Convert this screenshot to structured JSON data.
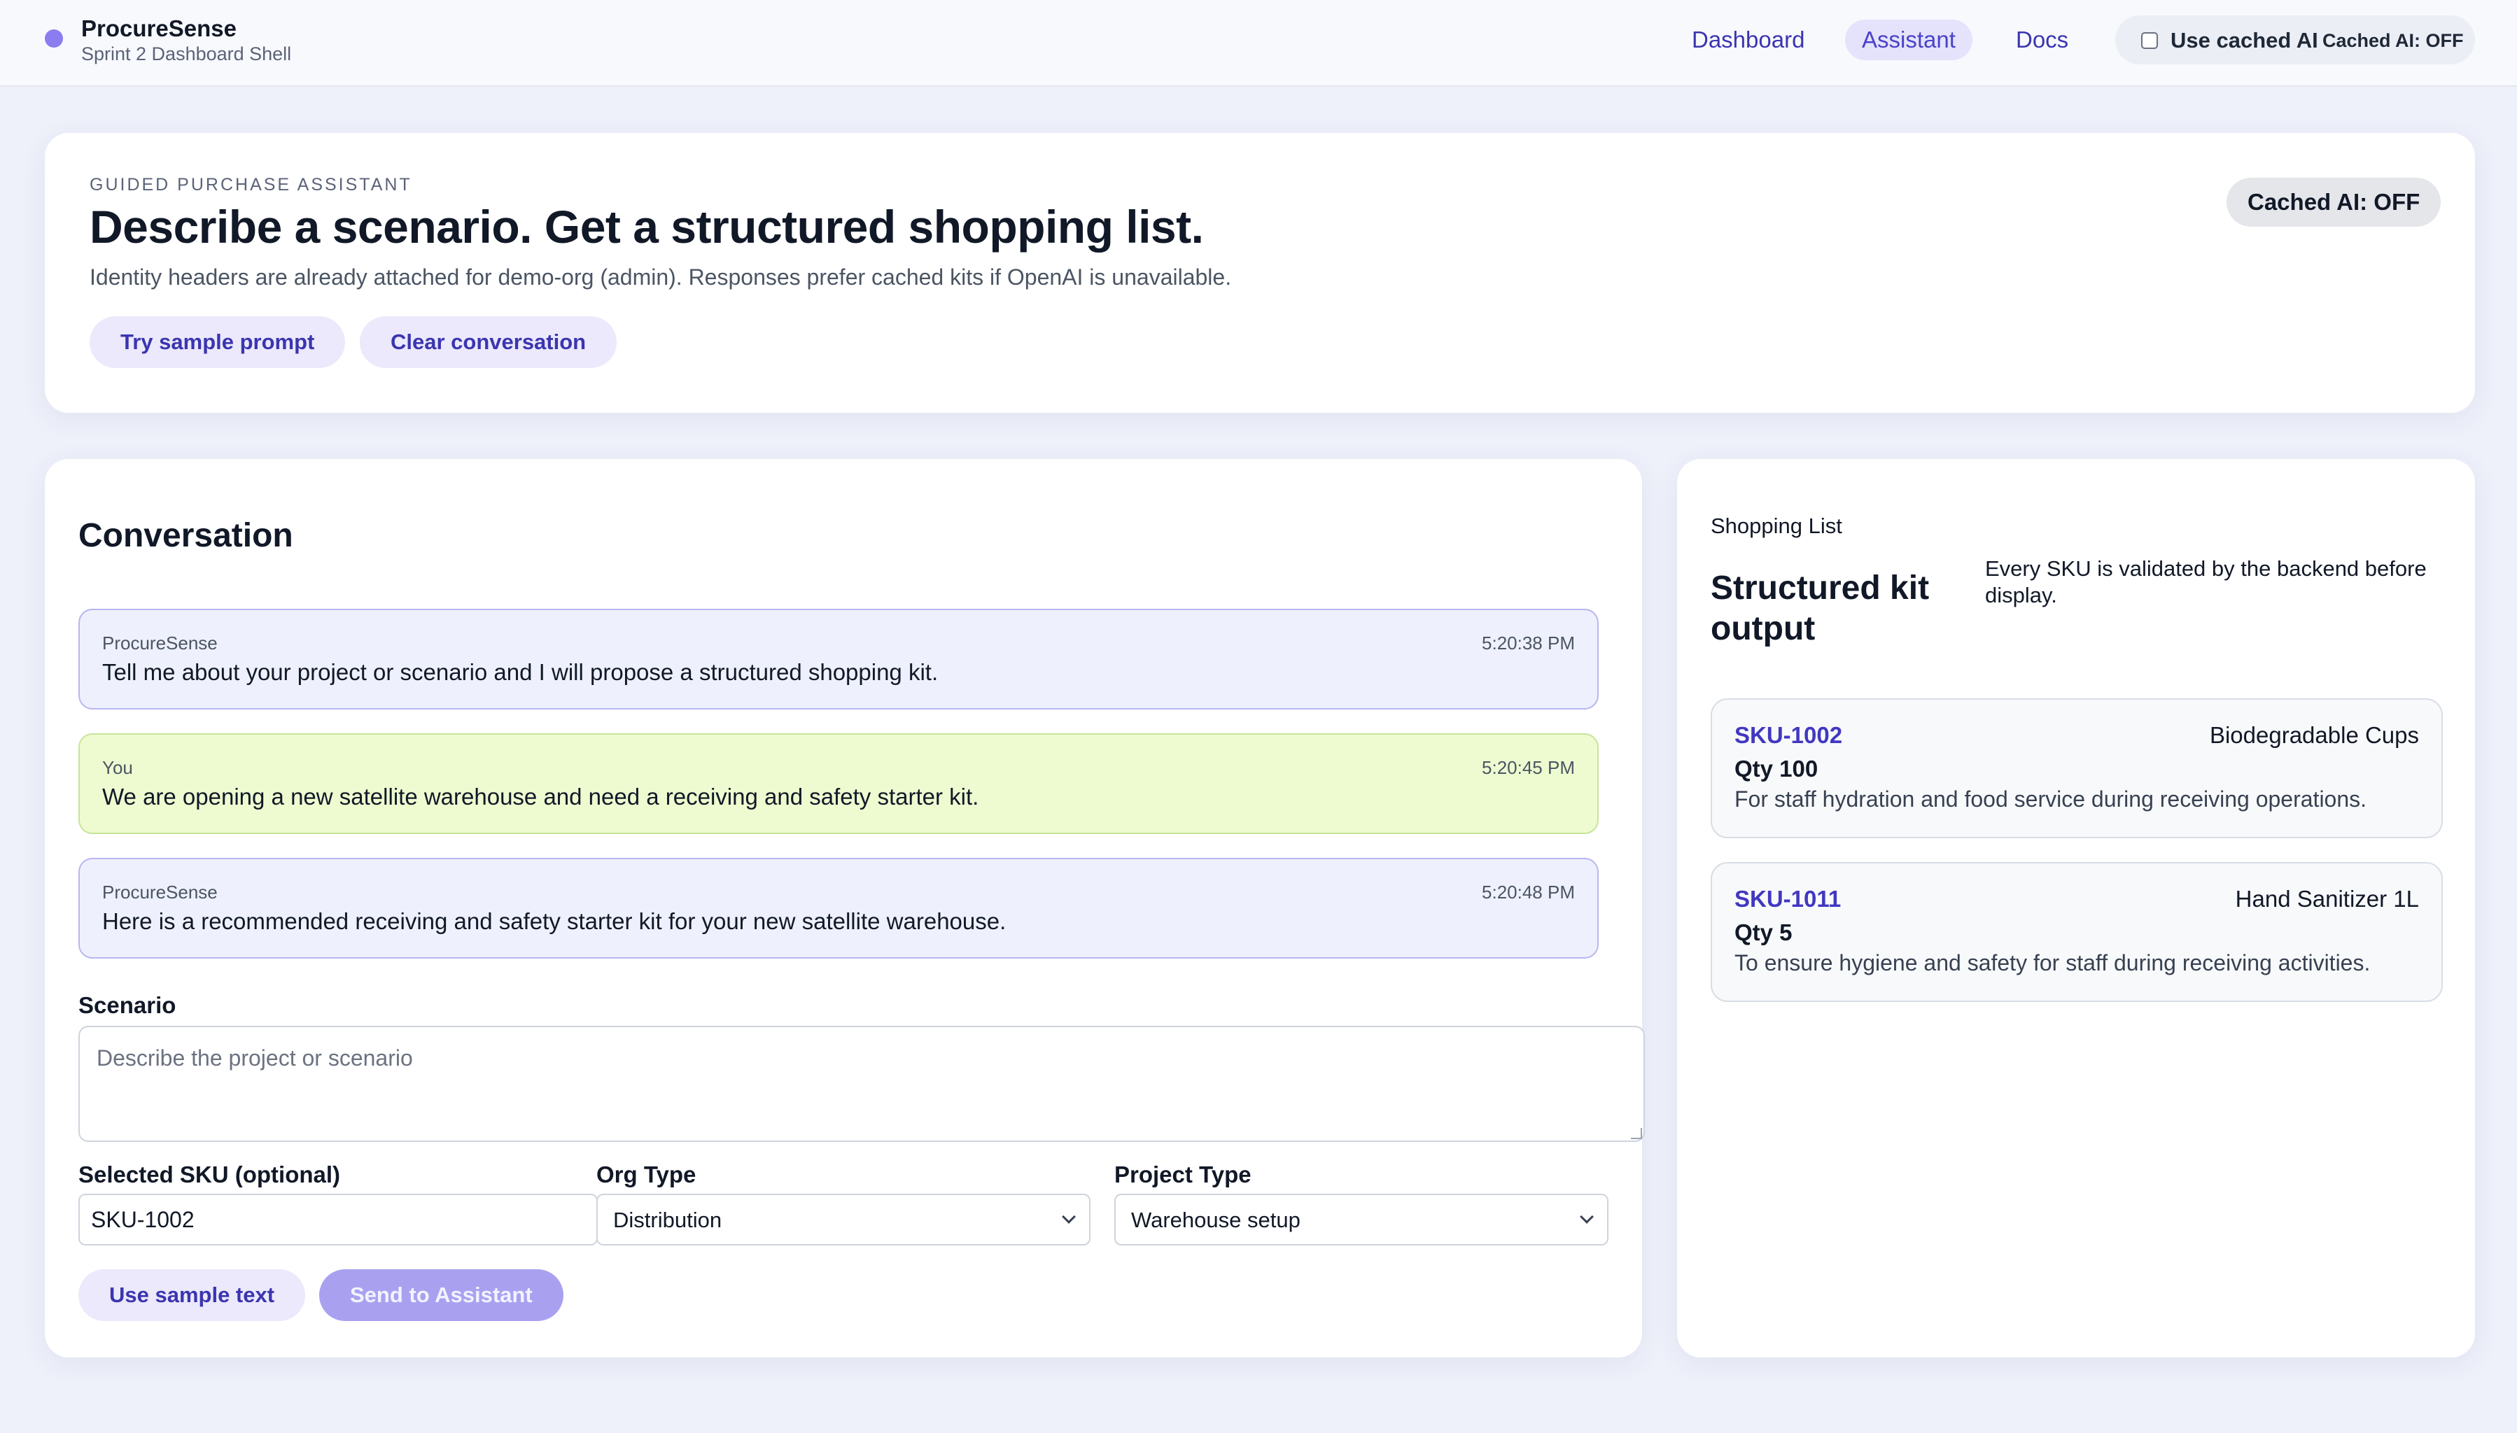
{
  "app": {
    "name": "ProcureSense",
    "subtitle": "Sprint 2 Dashboard Shell",
    "brand_color": "#8b7cf0"
  },
  "nav": {
    "items": [
      {
        "label": "Dashboard",
        "active": false
      },
      {
        "label": "Assistant",
        "active": true
      },
      {
        "label": "Docs",
        "active": false
      }
    ],
    "cached_toggle": {
      "label": "Use cached AI",
      "checked": false,
      "status": "Cached AI: OFF"
    }
  },
  "hero": {
    "eyebrow": "GUIDED PURCHASE ASSISTANT",
    "title": "Describe a scenario. Get a structured shopping list.",
    "description": "Identity headers are already attached for demo-org (admin). Responses prefer cached kits if OpenAI is unavailable.",
    "buttons": {
      "sample": "Try sample prompt",
      "clear": "Clear conversation"
    },
    "badge": "Cached AI: OFF"
  },
  "conversation": {
    "title": "Conversation",
    "messages": [
      {
        "author": "ProcureSense",
        "time": "5:20:38 PM",
        "text": "Tell me about your project or scenario and I will propose a structured shopping kit."
      },
      {
        "author": "You",
        "time": "5:20:45 PM",
        "text": "We are opening a new satellite warehouse and need a receiving and safety starter kit."
      },
      {
        "author": "ProcureSense",
        "time": "5:20:48 PM",
        "text": "Here is a recommended receiving and safety starter kit for your new satellite warehouse."
      }
    ],
    "form": {
      "scenario_label": "Scenario",
      "scenario_placeholder": "Describe the project or scenario",
      "scenario_value": "",
      "sku_label": "Selected SKU (optional)",
      "sku_value": "SKU-1002",
      "org_label": "Org Type",
      "org_value": "Distribution",
      "project_label": "Project Type",
      "project_value": "Warehouse setup",
      "sample_button": "Use sample text",
      "send_button": "Send to Assistant"
    }
  },
  "shopping_list": {
    "eyebrow": "Shopping List",
    "title": "Structured kit output",
    "description": "Every SKU is validated by the backend before display.",
    "items": [
      {
        "sku": "SKU-1002",
        "name": "Biodegradable Cups",
        "qty": "Qty 100",
        "reason": "For staff hydration and food service during receiving operations."
      },
      {
        "sku": "SKU-1011",
        "name": "Hand Sanitizer 1L",
        "qty": "Qty 5",
        "reason": "To ensure hygiene and safety for staff during receiving activities."
      }
    ]
  },
  "colors": {
    "accent": "#3b35b0",
    "assistant_message_bg": "#eef0fd",
    "user_message_bg": "#eefbd0",
    "page_bg": "#eef0fa"
  }
}
